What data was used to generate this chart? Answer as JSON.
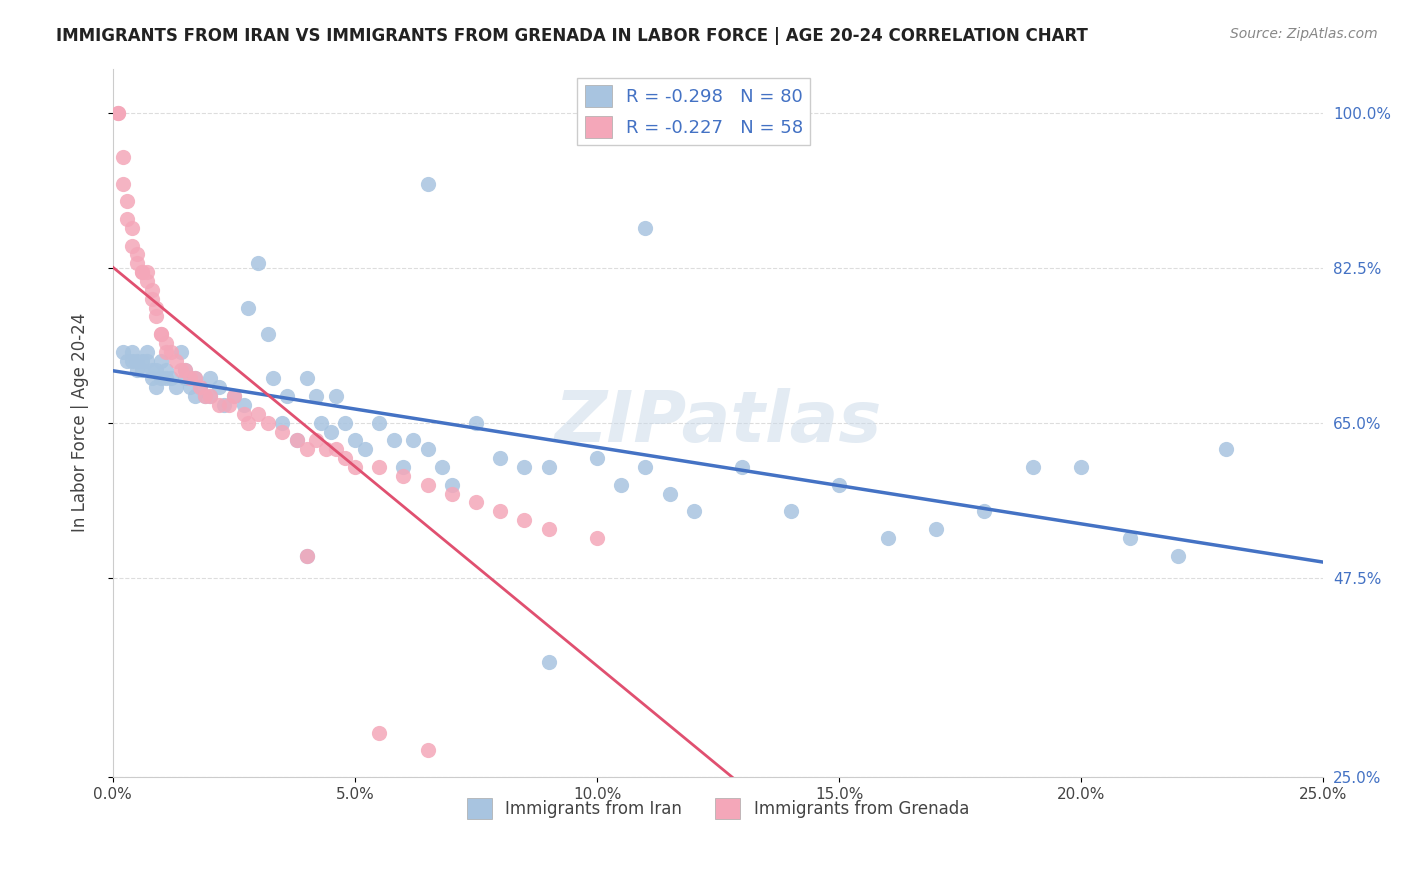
{
  "title": "IMMIGRANTS FROM IRAN VS IMMIGRANTS FROM GRENADA IN LABOR FORCE | AGE 20-24 CORRELATION CHART",
  "source": "Source: ZipAtlas.com",
  "xlabel_bottom": "",
  "ylabel": "In Labor Force | Age 20-24",
  "x_tick_labels": [
    "0.0%",
    "5.0%",
    "10.0%",
    "15.0%",
    "20.0%",
    "25.0%"
  ],
  "x_tick_values": [
    0.0,
    0.05,
    0.1,
    0.15,
    0.2,
    0.25
  ],
  "y_tick_labels": [
    "25.0%",
    "47.5%",
    "65.0%",
    "82.5%",
    "100.0%"
  ],
  "y_tick_values": [
    0.25,
    0.475,
    0.65,
    0.825,
    1.0
  ],
  "xlim": [
    0.0,
    0.25
  ],
  "ylim": [
    0.25,
    1.05
  ],
  "iran_R": "-0.298",
  "iran_N": "80",
  "grenada_R": "-0.227",
  "grenada_N": "58",
  "iran_color": "#a8c4e0",
  "grenada_color": "#f4a7b9",
  "iran_line_color": "#4472c4",
  "grenada_line_color": "#e05070",
  "watermark": "ZIPatlas",
  "iran_scatter_x": [
    0.002,
    0.003,
    0.004,
    0.004,
    0.005,
    0.005,
    0.006,
    0.006,
    0.007,
    0.007,
    0.008,
    0.008,
    0.009,
    0.009,
    0.01,
    0.01,
    0.011,
    0.011,
    0.012,
    0.013,
    0.014,
    0.015,
    0.015,
    0.016,
    0.017,
    0.017,
    0.018,
    0.019,
    0.02,
    0.02,
    0.022,
    0.023,
    0.025,
    0.027,
    0.028,
    0.03,
    0.032,
    0.033,
    0.035,
    0.036,
    0.038,
    0.04,
    0.042,
    0.043,
    0.045,
    0.046,
    0.048,
    0.05,
    0.052,
    0.055,
    0.058,
    0.06,
    0.062,
    0.065,
    0.068,
    0.07,
    0.075,
    0.08,
    0.085,
    0.09,
    0.1,
    0.105,
    0.11,
    0.115,
    0.12,
    0.13,
    0.14,
    0.15,
    0.16,
    0.17,
    0.18,
    0.19,
    0.2,
    0.21,
    0.22,
    0.23,
    0.09,
    0.11,
    0.065,
    0.04
  ],
  "iran_scatter_y": [
    0.73,
    0.72,
    0.72,
    0.73,
    0.71,
    0.72,
    0.72,
    0.71,
    0.73,
    0.72,
    0.7,
    0.71,
    0.69,
    0.71,
    0.7,
    0.72,
    0.71,
    0.7,
    0.7,
    0.69,
    0.73,
    0.7,
    0.71,
    0.69,
    0.68,
    0.7,
    0.69,
    0.68,
    0.68,
    0.7,
    0.69,
    0.67,
    0.68,
    0.67,
    0.78,
    0.83,
    0.75,
    0.7,
    0.65,
    0.68,
    0.63,
    0.7,
    0.68,
    0.65,
    0.64,
    0.68,
    0.65,
    0.63,
    0.62,
    0.65,
    0.63,
    0.6,
    0.63,
    0.62,
    0.6,
    0.58,
    0.65,
    0.61,
    0.6,
    0.6,
    0.61,
    0.58,
    0.6,
    0.57,
    0.55,
    0.6,
    0.55,
    0.58,
    0.52,
    0.53,
    0.55,
    0.6,
    0.6,
    0.52,
    0.5,
    0.62,
    0.38,
    0.87,
    0.92,
    0.5
  ],
  "grenada_scatter_x": [
    0.001,
    0.001,
    0.002,
    0.002,
    0.003,
    0.003,
    0.004,
    0.004,
    0.005,
    0.005,
    0.006,
    0.006,
    0.007,
    0.007,
    0.008,
    0.008,
    0.009,
    0.009,
    0.01,
    0.01,
    0.011,
    0.011,
    0.012,
    0.013,
    0.014,
    0.015,
    0.016,
    0.017,
    0.018,
    0.019,
    0.02,
    0.022,
    0.024,
    0.025,
    0.027,
    0.028,
    0.03,
    0.032,
    0.035,
    0.038,
    0.04,
    0.042,
    0.044,
    0.046,
    0.048,
    0.05,
    0.055,
    0.06,
    0.065,
    0.07,
    0.075,
    0.08,
    0.085,
    0.09,
    0.1,
    0.065,
    0.04,
    0.055
  ],
  "grenada_scatter_y": [
    1.0,
    1.0,
    0.95,
    0.92,
    0.9,
    0.88,
    0.87,
    0.85,
    0.84,
    0.83,
    0.82,
    0.82,
    0.82,
    0.81,
    0.8,
    0.79,
    0.78,
    0.77,
    0.75,
    0.75,
    0.74,
    0.73,
    0.73,
    0.72,
    0.71,
    0.71,
    0.7,
    0.7,
    0.69,
    0.68,
    0.68,
    0.67,
    0.67,
    0.68,
    0.66,
    0.65,
    0.66,
    0.65,
    0.64,
    0.63,
    0.62,
    0.63,
    0.62,
    0.62,
    0.61,
    0.6,
    0.6,
    0.59,
    0.58,
    0.57,
    0.56,
    0.55,
    0.54,
    0.53,
    0.52,
    0.28,
    0.5,
    0.3
  ],
  "legend_iran_label": "Immigrants from Iran",
  "legend_grenada_label": "Immigrants from Grenada",
  "background_color": "#ffffff",
  "grid_color": "#dddddd",
  "title_color": "#222222",
  "axis_label_color": "#222222",
  "right_tick_color": "#4472c4",
  "watermark_color": "#c8d8e8",
  "watermark_alpha": 0.5
}
